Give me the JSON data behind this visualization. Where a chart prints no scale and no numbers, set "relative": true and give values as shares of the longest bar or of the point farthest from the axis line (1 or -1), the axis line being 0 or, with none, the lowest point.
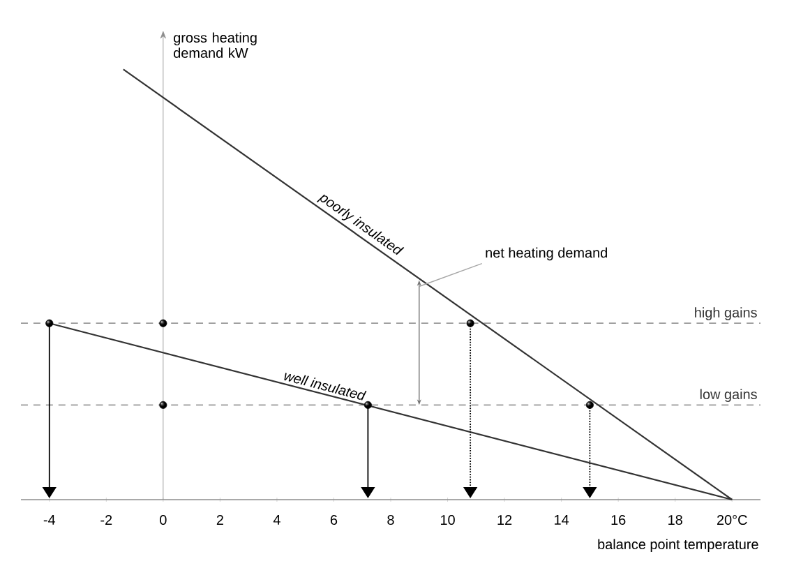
{
  "chart_data": {
    "type": "line",
    "relative": true,
    "xlabel": "balance point temperature",
    "ylabel": "gross heating demand kW",
    "xlim": [
      -5,
      21
    ],
    "xticks": [
      -4,
      -2,
      0,
      2,
      4,
      6,
      8,
      10,
      12,
      14,
      16,
      18,
      {
        "value": 20,
        "label": "20°C"
      }
    ],
    "series": [
      {
        "name": "poorly insulated",
        "color": "#333333",
        "x": [
          -1.4,
          20
        ],
        "values": [
          1,
          0
        ]
      },
      {
        "name": "well insulated",
        "color": "#333333",
        "x": [
          -4,
          20
        ],
        "values": [
          0.41,
          0
        ]
      },
      {
        "type": "scatter",
        "marker": "circle",
        "color": "#111111",
        "x": [
          0,
          0
        ],
        "values": [
          0.41,
          0.22
        ]
      },
      {
        "type": "scatter",
        "marker": "circle",
        "color": "#111111",
        "x": [
          -4,
          7.2
        ],
        "values": [
          0.41,
          0.22
        ],
        "line_style": "solid"
      },
      {
        "type": "scatter",
        "marker": "circle",
        "color": "#111111",
        "x": [
          10.8,
          15
        ],
        "values": [
          0.41,
          0.22
        ],
        "line_style": "dotted"
      }
    ],
    "ref_lines": [
      {
        "axis": "y",
        "value": 0.41,
        "label": "high gains",
        "color": "#999999",
        "line_style": "dashed"
      },
      {
        "axis": "y",
        "value": 0.22,
        "label": "low gains",
        "color": "#999999",
        "line_style": "dashed"
      }
    ],
    "annotations": [
      {
        "text": "net heating demand",
        "x": 9,
        "y": 0.51
      }
    ]
  }
}
